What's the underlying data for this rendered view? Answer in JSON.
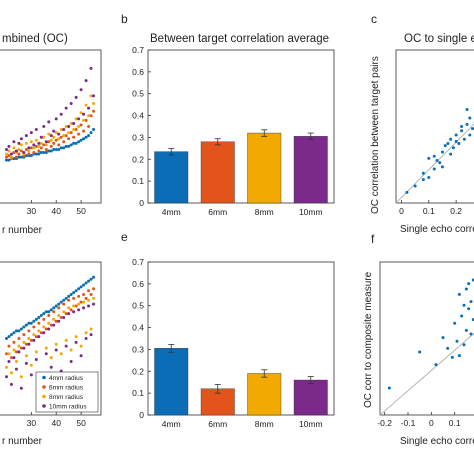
{
  "colors": {
    "4mm": "#0a6db5",
    "6mm": "#e2541b",
    "8mm": "#f2a900",
    "10mm": "#7b2a8c",
    "ref_line": "#b5b5b5"
  },
  "chart_data": [
    {
      "id": "a_top",
      "type": "scatter",
      "title_fragment": "mbined (OC)",
      "xlabel_fragment": "r number",
      "x_ticks": [
        "30",
        "40",
        "50"
      ],
      "x": [
        20,
        21,
        22,
        23,
        24,
        25,
        26,
        27,
        28,
        29,
        30,
        31,
        32,
        33,
        34,
        35,
        36,
        37,
        38,
        39,
        40,
        41,
        42,
        43,
        44,
        45,
        46,
        47,
        48,
        49,
        50,
        51,
        52,
        53,
        54,
        55
      ],
      "series": [
        {
          "key": "4mm",
          "values": [
            0.18,
            0.18,
            0.19,
            0.19,
            0.19,
            0.2,
            0.2,
            0.2,
            0.21,
            0.21,
            0.21,
            0.22,
            0.22,
            0.22,
            0.23,
            0.23,
            0.23,
            0.24,
            0.24,
            0.25,
            0.25,
            0.25,
            0.26,
            0.26,
            0.27,
            0.27,
            0.28,
            0.29,
            0.29,
            0.3,
            0.31,
            0.32,
            0.33,
            0.34,
            0.36,
            0.38
          ]
        },
        {
          "key": "6mm",
          "values": [
            0.2,
            0.21,
            0.19,
            0.23,
            0.2,
            0.22,
            0.24,
            0.21,
            0.25,
            0.22,
            0.26,
            0.23,
            0.27,
            0.24,
            0.26,
            0.28,
            0.25,
            0.3,
            0.27,
            0.29,
            0.31,
            0.28,
            0.33,
            0.3,
            0.34,
            0.32,
            0.36,
            0.33,
            0.38,
            0.35,
            0.41,
            0.37,
            0.44,
            0.4,
            0.47,
            0.5
          ]
        },
        {
          "key": "8mm",
          "values": [
            0.22,
            0.24,
            0.2,
            0.26,
            0.23,
            0.25,
            0.28,
            0.22,
            0.29,
            0.24,
            0.3,
            0.26,
            0.31,
            0.27,
            0.29,
            0.33,
            0.28,
            0.35,
            0.31,
            0.33,
            0.36,
            0.32,
            0.38,
            0.34,
            0.4,
            0.36,
            0.42,
            0.38,
            0.45,
            0.4,
            0.49,
            0.44,
            0.54,
            0.47,
            0.6,
            0.55
          ]
        },
        {
          "key": "10mm",
          "values": [
            0.25,
            0.27,
            0.22,
            0.3,
            0.24,
            0.29,
            0.32,
            0.23,
            0.34,
            0.26,
            0.36,
            0.28,
            0.38,
            0.29,
            0.33,
            0.4,
            0.3,
            0.43,
            0.34,
            0.37,
            0.45,
            0.35,
            0.48,
            0.38,
            0.52,
            0.4,
            0.55,
            0.42,
            0.59,
            0.45,
            0.64,
            0.48,
            0.7,
            0.52,
            0.78,
            0.6
          ]
        }
      ]
    },
    {
      "id": "b",
      "type": "bar",
      "letter": "b",
      "title": "Between target correlation average",
      "categories": [
        "4mm",
        "6mm",
        "8mm",
        "10mm"
      ],
      "values": [
        0.235,
        0.28,
        0.32,
        0.305
      ],
      "errors": [
        0.015,
        0.014,
        0.015,
        0.015
      ],
      "ylim": [
        0,
        0.7
      ],
      "y_ticks": [
        "0",
        "0.1",
        "0.2",
        "0.3",
        "0.4",
        "0.5",
        "0.6",
        "0.7"
      ]
    },
    {
      "id": "c",
      "type": "scatter",
      "letter": "c",
      "title_fragment": "OC to single e",
      "xlabel_fragment": "Single echo corre",
      "ylabel": "OC correlation between target pairs",
      "x_ticks": [
        "0",
        "0.1",
        "0.2"
      ],
      "x": [
        0.02,
        0.05,
        0.08,
        0.1,
        0.12,
        0.12,
        0.14,
        0.15,
        0.16,
        0.18,
        0.18,
        0.19,
        0.2,
        0.21,
        0.22,
        0.23,
        0.24,
        0.25,
        0.25,
        0.26,
        0.27,
        0.28,
        0.1,
        0.15,
        0.2,
        0.08,
        0.13,
        0.22,
        0.17,
        0.24
      ],
      "y": [
        0.03,
        0.06,
        0.12,
        0.19,
        0.14,
        0.2,
        0.17,
        0.22,
        0.25,
        0.21,
        0.28,
        0.24,
        0.3,
        0.26,
        0.32,
        0.28,
        0.35,
        0.3,
        0.38,
        0.33,
        0.36,
        0.4,
        0.1,
        0.15,
        0.27,
        0.09,
        0.18,
        0.34,
        0.26,
        0.42
      ],
      "series": [
        {
          "key": "4mm"
        }
      ]
    },
    {
      "id": "d",
      "type": "scatter",
      "xlabel_fragment": "r number",
      "x_ticks": [
        "30",
        "40",
        "50"
      ],
      "legend": [
        "4mm radius",
        "6mm radius",
        "8mm radius",
        "10mm radius"
      ],
      "legend_position": "bottom-right",
      "x": [
        20,
        21,
        22,
        23,
        24,
        25,
        26,
        27,
        28,
        29,
        30,
        31,
        32,
        33,
        34,
        35,
        36,
        37,
        38,
        39,
        40,
        41,
        42,
        43,
        44,
        45,
        46,
        47,
        48,
        49,
        50,
        51,
        52,
        53,
        54,
        55
      ],
      "series": [
        {
          "key": "4mm",
          "values": [
            0.1,
            0.11,
            0.12,
            0.13,
            0.14,
            0.14,
            0.15,
            0.16,
            0.17,
            0.18,
            0.18,
            0.19,
            0.2,
            0.21,
            0.22,
            0.23,
            0.24,
            0.24,
            0.25,
            0.26,
            0.27,
            0.28,
            0.29,
            0.3,
            0.31,
            0.32,
            0.33,
            0.34,
            0.35,
            0.36,
            0.37,
            0.38,
            0.39,
            0.4,
            0.41,
            0.42
          ]
        },
        {
          "key": "6mm",
          "values": [
            0.02,
            0.06,
            0.0,
            0.08,
            0.03,
            0.1,
            0.05,
            0.12,
            0.07,
            0.14,
            0.09,
            0.16,
            0.11,
            0.18,
            0.13,
            0.2,
            0.15,
            0.22,
            0.17,
            0.24,
            0.19,
            0.26,
            0.21,
            0.28,
            0.23,
            0.3,
            0.25,
            0.31,
            0.27,
            0.32,
            0.29,
            0.33,
            0.31,
            0.35,
            0.33,
            0.36
          ]
        },
        {
          "key": "8mm",
          "values": [
            -0.05,
            0.02,
            -0.08,
            0.04,
            -0.02,
            0.06,
            -0.1,
            0.08,
            0.01,
            0.1,
            -0.04,
            0.12,
            0.03,
            0.14,
            -0.12,
            0.16,
            0.05,
            0.18,
            0.0,
            0.2,
            0.07,
            0.22,
            0.02,
            0.24,
            0.09,
            0.26,
            0.04,
            0.27,
            0.11,
            0.28,
            0.06,
            0.29,
            0.13,
            0.3,
            0.15,
            0.31
          ]
        },
        {
          "key": "10mm",
          "values": [
            -0.1,
            -0.02,
            -0.14,
            0.0,
            -0.06,
            0.03,
            -0.16,
            0.05,
            -0.03,
            0.07,
            -0.09,
            0.09,
            -0.01,
            0.11,
            -0.18,
            0.13,
            0.02,
            0.15,
            -0.05,
            0.17,
            0.04,
            0.19,
            -0.07,
            0.21,
            0.06,
            0.23,
            -0.02,
            0.24,
            0.08,
            0.25,
            0.01,
            0.26,
            0.1,
            0.27,
            0.12,
            0.28
          ]
        }
      ]
    },
    {
      "id": "e",
      "type": "bar",
      "letter": "e",
      "categories": [
        "4mm",
        "6mm",
        "8mm",
        "10mm"
      ],
      "values": [
        0.305,
        0.12,
        0.19,
        0.16
      ],
      "errors": [
        0.018,
        0.02,
        0.017,
        0.016
      ],
      "ylim": [
        0,
        0.7
      ],
      "y_ticks": [
        "0",
        "0.1",
        "0.2",
        "0.3",
        "0.4",
        "0.5",
        "0.6",
        "0.7"
      ]
    },
    {
      "id": "f",
      "type": "scatter",
      "letter": "f",
      "xlabel_fragment": "Single echo corre",
      "ylabel": "OC corr to composite measure",
      "x_ticks": [
        "-0.2",
        "-0.1",
        "0",
        "0.1"
      ],
      "x": [
        -0.18,
        -0.05,
        0.02,
        0.05,
        0.07,
        0.09,
        0.1,
        0.11,
        0.12,
        0.12,
        0.13,
        0.14,
        0.14,
        0.15,
        0.15,
        0.16,
        0.16,
        0.17,
        0.17,
        0.18,
        0.18,
        0.19,
        0.19,
        0.2
      ],
      "y": [
        0.0,
        0.2,
        0.13,
        0.28,
        0.22,
        0.17,
        0.36,
        0.26,
        0.52,
        0.18,
        0.4,
        0.46,
        0.24,
        0.55,
        0.32,
        0.44,
        0.58,
        0.3,
        0.48,
        0.38,
        0.6,
        0.27,
        0.42,
        0.5
      ],
      "series": [
        {
          "key": "4mm"
        }
      ]
    }
  ]
}
